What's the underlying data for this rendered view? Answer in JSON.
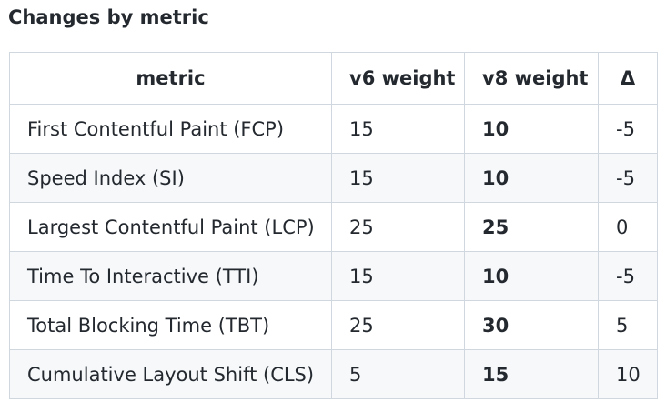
{
  "title": "Changes by metric",
  "table": {
    "headers": [
      "metric",
      "v6 weight",
      "v8 weight",
      "Δ"
    ],
    "rows": [
      [
        "First Contentful Paint (FCP)",
        "15",
        "10",
        "-5"
      ],
      [
        "Speed Index (SI)",
        "15",
        "10",
        "-5"
      ],
      [
        "Largest Contentful Paint (LCP)",
        "25",
        "25",
        "0"
      ],
      [
        "Time To Interactive (TTI)",
        "15",
        "10",
        "-5"
      ],
      [
        "Total Blocking Time (TBT)",
        "25",
        "30",
        "5"
      ],
      [
        "Cumulative Layout Shift (CLS)",
        "5",
        "15",
        "10"
      ]
    ]
  }
}
